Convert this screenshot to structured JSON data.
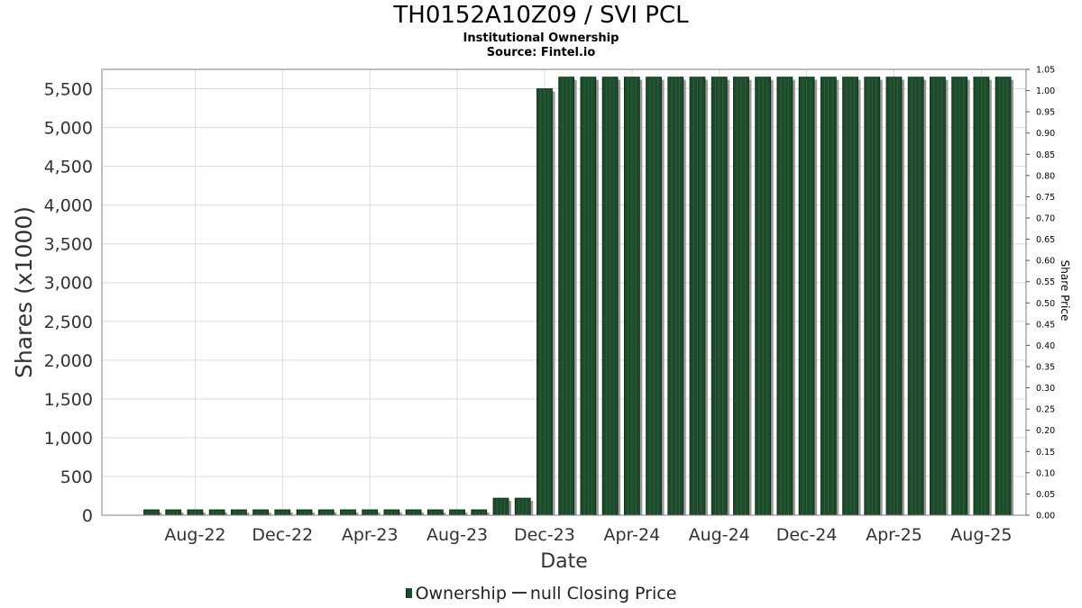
{
  "title": "TH0152A10Z09 / SVI PCL",
  "subtitle": "Institutional Ownership",
  "source": "Source: Fintel.io",
  "legend": {
    "ownership": "Ownership",
    "price": "null Closing Price"
  },
  "colors": {
    "bar": "#1e4a2b",
    "bar_edge": "#0d2a16",
    "shadow": "#9a9a9a",
    "grid": "#dcdcdc",
    "frame": "#808080"
  },
  "chart_data": {
    "type": "bar",
    "xlabel": "Date",
    "ylabel": "Shares (x1000)",
    "y2label": "Share Price",
    "ylim": [
      0,
      5750
    ],
    "y2lim": [
      0,
      1.05
    ],
    "yticks": [
      "0",
      "500",
      "1,000",
      "1,500",
      "2,000",
      "2,500",
      "3,000",
      "3,500",
      "4,000",
      "4,500",
      "5,000",
      "5,500"
    ],
    "y2ticks": [
      "0.00",
      "0.05",
      "0.10",
      "0.15",
      "0.20",
      "0.25",
      "0.30",
      "0.35",
      "0.40",
      "0.45",
      "0.50",
      "0.55",
      "0.60",
      "0.65",
      "0.70",
      "0.75",
      "0.80",
      "0.85",
      "0.90",
      "0.95",
      "1.00",
      "1.05"
    ],
    "xticks": [
      "Aug-22",
      "Dec-22",
      "Apr-23",
      "Aug-23",
      "Dec-23",
      "Apr-24",
      "Aug-24",
      "Dec-24",
      "Apr-25",
      "Aug-25"
    ],
    "grid": true,
    "legend_position": "bottom",
    "series": [
      {
        "name": "Ownership",
        "categories": [
          "Jun-22",
          "Jul-22",
          "Aug-22",
          "Sep-22",
          "Oct-22",
          "Nov-22",
          "Dec-22",
          "Jan-23",
          "Feb-23",
          "Mar-23",
          "Apr-23",
          "May-23",
          "Jun-23",
          "Jul-23",
          "Aug-23",
          "Sep-23",
          "Oct-23",
          "Nov-23",
          "Dec-23",
          "Jan-24",
          "Feb-24",
          "Mar-24",
          "Apr-24",
          "May-24",
          "Jun-24",
          "Jul-24",
          "Aug-24",
          "Sep-24",
          "Oct-24",
          "Nov-24",
          "Dec-24",
          "Jan-25",
          "Feb-25",
          "Mar-25",
          "Apr-25",
          "May-25",
          "Jun-25",
          "Jul-25",
          "Aug-25",
          "Sep-25"
        ],
        "values": [
          70,
          70,
          70,
          70,
          70,
          70,
          70,
          70,
          70,
          70,
          70,
          70,
          70,
          70,
          70,
          70,
          220,
          220,
          5500,
          5650,
          5650,
          5650,
          5650,
          5650,
          5650,
          5650,
          5650,
          5650,
          5650,
          5650,
          5650,
          5650,
          5650,
          5650,
          5650,
          5650,
          5650,
          5650,
          5650,
          5650
        ]
      }
    ]
  }
}
